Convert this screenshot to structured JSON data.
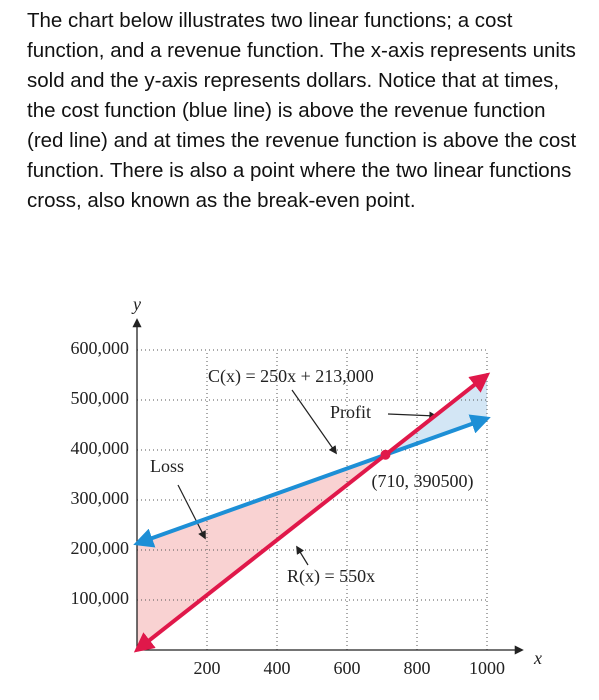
{
  "intro": "The chart below illustrates two linear functions; a cost function, and a revenue function. The x-axis represents units sold and the y-axis represents dollars. Notice that at times, the cost function (blue line) is above the revenue function (red line) and at times the revenue function is above the cost function. There is also a point where the two linear functions cross, also known as the break-even point.",
  "chart_data": {
    "type": "line",
    "x_label": "x",
    "y_label": "y",
    "x": [
      0,
      1000
    ],
    "series": [
      {
        "name": "C(x)",
        "color": "#1d8fd6",
        "values": [
          213000,
          463000
        ]
      },
      {
        "name": "R(x)",
        "color": "#e0184a",
        "values": [
          0,
          550000
        ]
      }
    ],
    "break_even": {
      "x": 710,
      "y": 390500,
      "label": "(710, 390500)"
    },
    "annotations": [
      "C(x) = 250x + 213,000",
      "R(x) = 550x",
      "Profit",
      "Loss"
    ],
    "xlim": [
      0,
      1100
    ],
    "ylim": [
      0,
      660000
    ],
    "xticks": [
      200,
      400,
      600,
      800,
      1000
    ],
    "yticks": [
      {
        "value": 100000,
        "label": "100,000"
      },
      {
        "value": 200000,
        "label": "200,000"
      },
      {
        "value": 300000,
        "label": "300,000"
      },
      {
        "value": 400000,
        "label": "400,000"
      },
      {
        "value": 500000,
        "label": "500,000"
      },
      {
        "value": 600000,
        "label": "600,000"
      }
    ],
    "grid": true
  }
}
